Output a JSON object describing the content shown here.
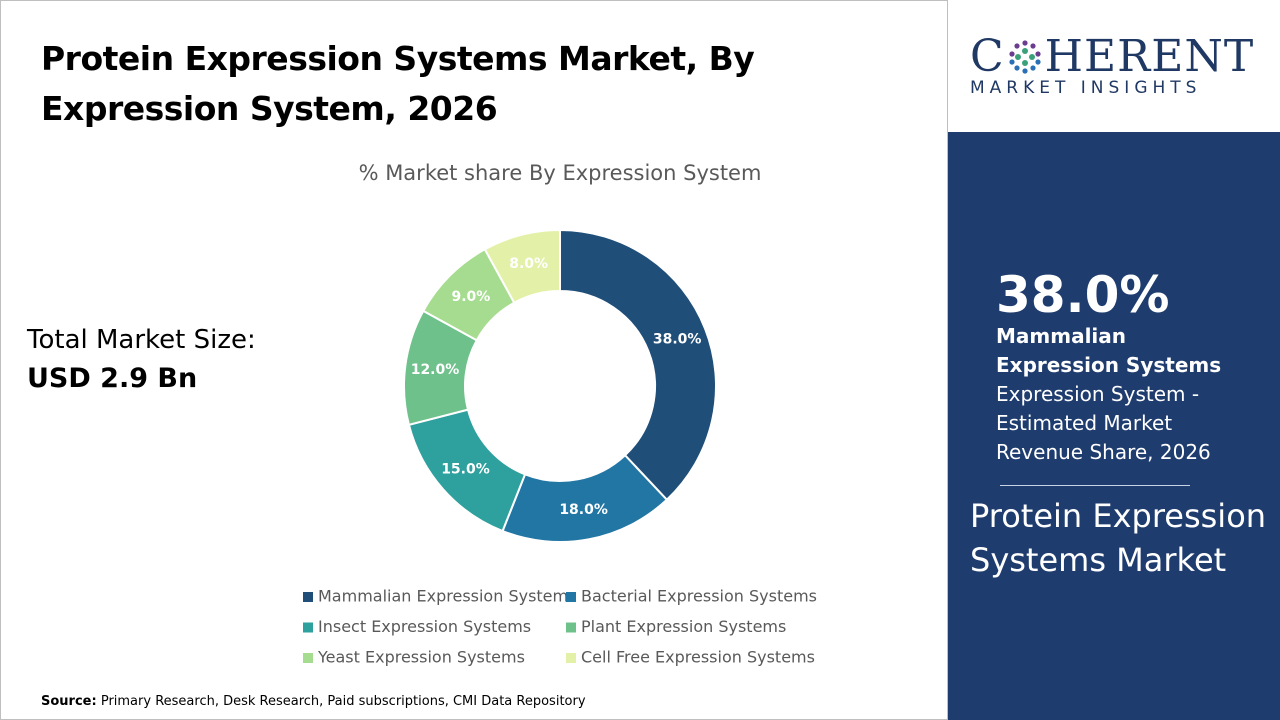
{
  "title": "Protein Expression Systems Market, By Expression System, 2026",
  "market_size": {
    "label": "Total Market Size:",
    "value": "USD 2.9 Bn"
  },
  "chart_data": {
    "type": "donut",
    "title": "% Market share By Expression System",
    "categories": [
      "Mammalian Expression Systems",
      "Bacterial Expression Systems",
      "Insect Expression Systems",
      "Plant Expression Systems",
      "Yeast Expression Systems",
      "Cell Free Expression Systems"
    ],
    "values": [
      38,
      18,
      15,
      12,
      9,
      8
    ],
    "value_labels": [
      "38.0%",
      "18.0%",
      "15.0%",
      "12.0%",
      "9.0%",
      "8.0%"
    ],
    "colors": [
      "#1f4e79",
      "#2276a4",
      "#2ea09e",
      "#6fc18c",
      "#a6dc8f",
      "#e3f1a8"
    ]
  },
  "logo": {
    "name_start": "C",
    "name_end": "HERENT",
    "tagline": "MARKET INSIGHTS"
  },
  "sidebar": {
    "highlight": "38.0%",
    "segment": "Mammalian Expression Systems",
    "description": "Expression System - Estimated Market Revenue Share, 2026",
    "market": "Protein Expression Systems Market"
  },
  "source": {
    "label": "Source:",
    "text": "Primary Research, Desk Research, Paid subscriptions, CMI Data Repository"
  }
}
